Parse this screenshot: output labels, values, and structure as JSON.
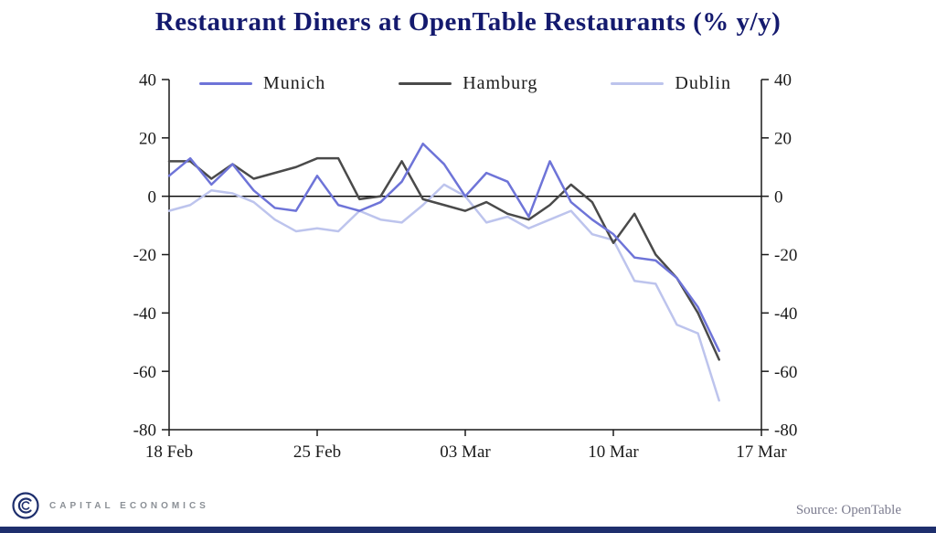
{
  "title": "Restaurant Diners at OpenTable Restaurants (% y/y)",
  "source": "Source: OpenTable",
  "brand": "CAPITAL ECONOMICS",
  "colors": {
    "title": "#141a6e",
    "axis": "#1a1a1a",
    "accent_bar": "#1e2f6d",
    "munich": "#6e74d8",
    "hamburg": "#4a4a4a",
    "dublin": "#bdc4ed"
  },
  "chart_data": {
    "type": "line",
    "title": "Restaurant Diners at OpenTable Restaurants (% y/y)",
    "xlabel": "",
    "ylabel": "",
    "ylim": [
      -80,
      40
    ],
    "y_ticks": [
      40,
      20,
      0,
      -20,
      -40,
      -60,
      -80
    ],
    "x_tick_labels": [
      "18 Feb",
      "25 Feb",
      "03 Mar",
      "10 Mar",
      "17 Mar"
    ],
    "x_tick_days": [
      0,
      7,
      14,
      21,
      28
    ],
    "x_domain_days": 28,
    "grid": false,
    "legend_position": "top-inside",
    "dates": [
      "18 Feb",
      "19 Feb",
      "20 Feb",
      "21 Feb",
      "22 Feb",
      "23 Feb",
      "24 Feb",
      "25 Feb",
      "26 Feb",
      "27 Feb",
      "28 Feb",
      "29 Feb",
      "01 Mar",
      "02 Mar",
      "03 Mar",
      "04 Mar",
      "05 Mar",
      "06 Mar",
      "07 Mar",
      "08 Mar",
      "09 Mar",
      "10 Mar",
      "11 Mar",
      "12 Mar",
      "13 Mar",
      "14 Mar",
      "15 Mar"
    ],
    "series": [
      {
        "name": "Munich",
        "color": "#6e74d8",
        "values": [
          7,
          13,
          4,
          11,
          2,
          -4,
          -5,
          7,
          -3,
          -5,
          -2,
          5,
          18,
          11,
          0,
          8,
          5,
          -7,
          12,
          -2,
          -8,
          -13,
          -21,
          -22,
          -28,
          -38,
          -53
        ]
      },
      {
        "name": "Hamburg",
        "color": "#4a4a4a",
        "values": [
          12,
          12,
          6,
          11,
          6,
          8,
          10,
          13,
          13,
          -1,
          0,
          12,
          -1,
          -3,
          -5,
          -2,
          -6,
          -8,
          -3,
          4,
          -2,
          -16,
          -6,
          -20,
          -28,
          -40,
          -56
        ]
      },
      {
        "name": "Dublin",
        "color": "#bdc4ed",
        "values": [
          -5,
          -3,
          2,
          1,
          -2,
          -8,
          -12,
          -11,
          -12,
          -5,
          -8,
          -9,
          -3,
          4,
          0,
          -9,
          -7,
          -11,
          -8,
          -5,
          -13,
          -15,
          -29,
          -30,
          -44,
          -47,
          -70
        ]
      }
    ]
  }
}
